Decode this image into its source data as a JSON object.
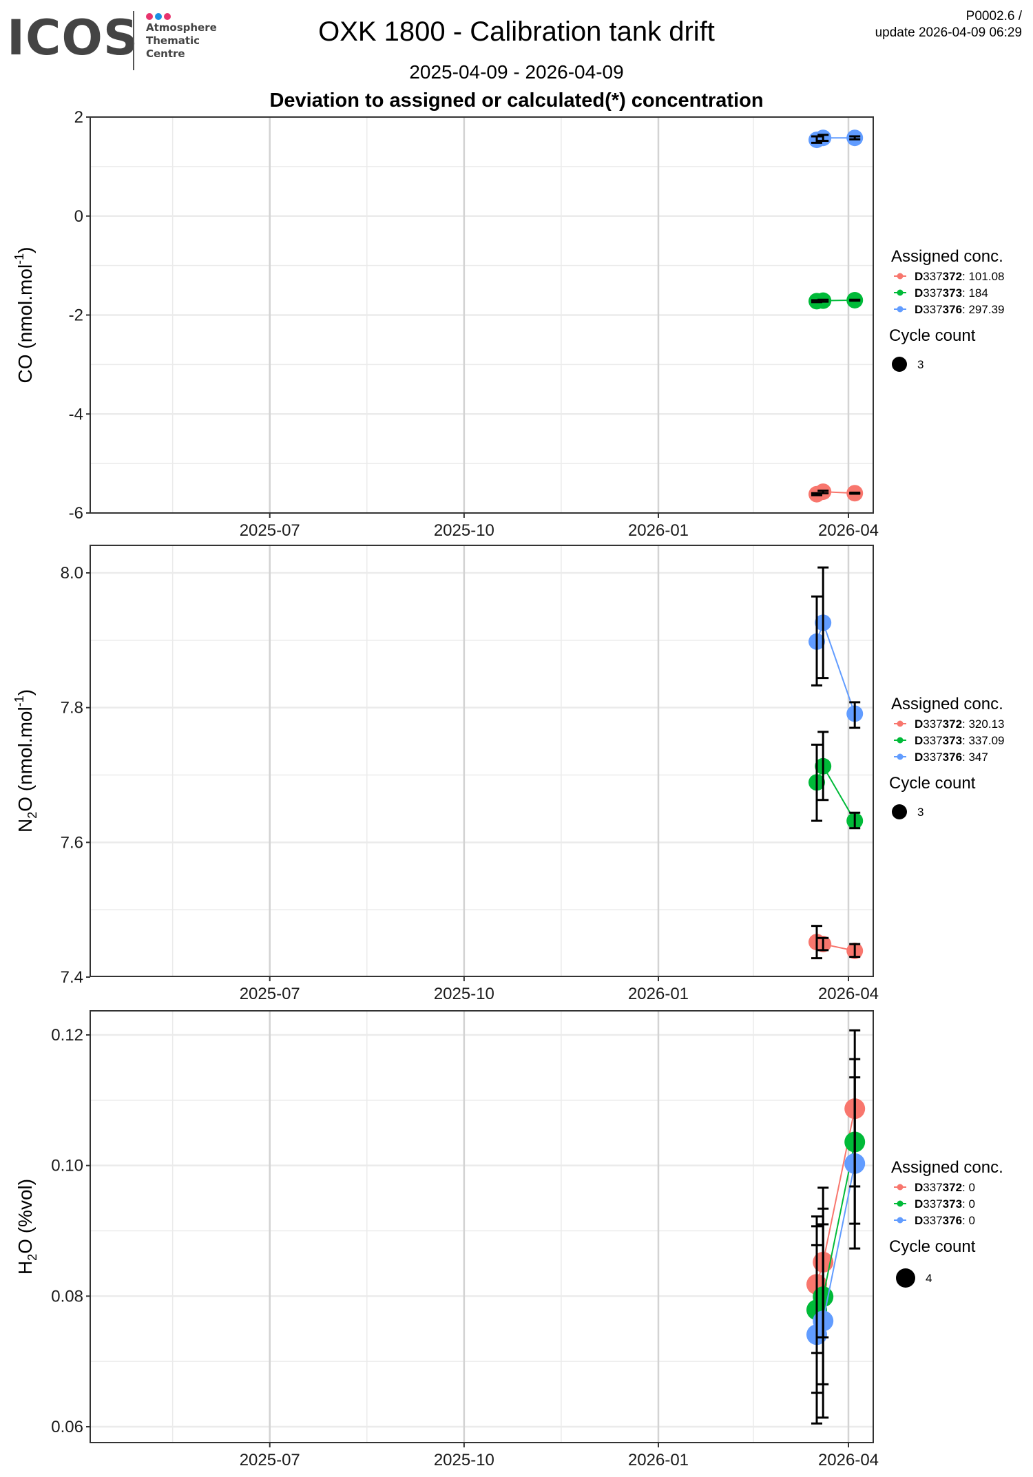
{
  "header": {
    "logo": {
      "word": "ICOS",
      "line1": "Atmosphere",
      "line2": "Thematic",
      "line3": "Centre",
      "dot_colors": [
        "#e8336d",
        "#1a8fe3",
        "#e8336d"
      ]
    },
    "title": "OXK 1800 - Calibration tank drift",
    "date_range": "2025-04-09 - 2026-04-09",
    "subtitle": "Deviation to assigned or calculated(*) concentration",
    "version": "P0002.6 /",
    "update": "update  2026-04-09 06:29"
  },
  "series_colors": {
    "D337372": "#F8766D",
    "D337373": "#00BA38",
    "D337376": "#619CFF"
  },
  "chart_data": [
    {
      "type": "line",
      "panel": "CO",
      "ylabel_main": "CO (nmol.mol",
      "ylabel_sup": "-1",
      "ylabel_end": ")",
      "xlim": [
        "2025-04-09",
        "2026-04-09"
      ],
      "ylim": [
        -6,
        2
      ],
      "yticks": [
        2,
        0,
        -2,
        -4,
        -6
      ],
      "ytick_labels": [
        "2",
        "0",
        "-2",
        "-4",
        "-6"
      ],
      "xticks": [
        "2025-07-01",
        "2025-10-01",
        "2026-01-01",
        "2026-04-01"
      ],
      "xtick_labels": [
        "2025-07",
        "2025-10",
        "2026-01",
        "2026-04"
      ],
      "grid": true,
      "legend": {
        "position": "right",
        "title": "Assigned conc.",
        "entries": [
          {
            "id": "D337372",
            "bold_prefix": "D",
            "plain_mid": "337",
            "bold_suffix": "372",
            "value": ": 101.08"
          },
          {
            "id": "D337373",
            "bold_prefix": "D",
            "plain_mid": "337",
            "bold_suffix": "373",
            "value": ": 184"
          },
          {
            "id": "D337376",
            "bold_prefix": "D",
            "plain_mid": "337",
            "bold_suffix": "376",
            "value": ": 297.39"
          }
        ],
        "size_title": "Cycle count",
        "size_label": "3"
      },
      "x": [
        "2026-03-17",
        "2026-03-20",
        "2026-04-04"
      ],
      "series": [
        {
          "name": "D337372",
          "values": [
            -5.62,
            -5.57,
            -5.6
          ],
          "err_low": [
            -5.64,
            -5.6,
            -5.61
          ],
          "err_high": [
            -5.6,
            -5.55,
            -5.59
          ]
        },
        {
          "name": "D337373",
          "values": [
            -1.72,
            -1.71,
            -1.7
          ],
          "err_low": [
            -1.74,
            -1.73,
            -1.71
          ],
          "err_high": [
            -1.7,
            -1.69,
            -1.69
          ]
        },
        {
          "name": "D337376",
          "values": [
            1.54,
            1.58,
            1.58
          ],
          "err_low": [
            1.48,
            1.52,
            1.55
          ],
          "err_high": [
            1.61,
            1.64,
            1.61
          ]
        }
      ]
    },
    {
      "type": "line",
      "panel": "N2O",
      "ylabel_pre": "N",
      "ylabel_sub": "2",
      "ylabel_main": "O (nmol.mol",
      "ylabel_sup": "-1",
      "ylabel_end": ")",
      "xlim": [
        "2025-04-09",
        "2026-04-09"
      ],
      "ylim": [
        7.4,
        8.04
      ],
      "yticks": [
        8.0,
        7.8,
        7.6,
        7.4
      ],
      "ytick_labels": [
        "8.0",
        "7.8",
        "7.6",
        "7.4"
      ],
      "xticks": [
        "2025-07-01",
        "2025-10-01",
        "2026-01-01",
        "2026-04-01"
      ],
      "xtick_labels": [
        "2025-07",
        "2025-10",
        "2026-01",
        "2026-04"
      ],
      "grid": true,
      "legend": {
        "position": "right",
        "title": "Assigned conc.",
        "entries": [
          {
            "id": "D337372",
            "bold_prefix": "D",
            "plain_mid": "337",
            "bold_suffix": "372",
            "value": ": 320.13"
          },
          {
            "id": "D337373",
            "bold_prefix": "D",
            "plain_mid": "337",
            "bold_suffix": "373",
            "value": ": 337.09"
          },
          {
            "id": "D337376",
            "bold_prefix": "D",
            "plain_mid": "337",
            "bold_suffix": "376",
            "value": ": 347"
          }
        ],
        "size_title": "Cycle count",
        "size_label": "3"
      },
      "x": [
        "2026-03-17",
        "2026-03-20",
        "2026-04-04"
      ],
      "series": [
        {
          "name": "D337372",
          "values": [
            7.452,
            7.449,
            7.439
          ],
          "err_low": [
            7.428,
            7.44,
            7.43
          ],
          "err_high": [
            7.476,
            7.458,
            7.449
          ]
        },
        {
          "name": "D337373",
          "values": [
            7.689,
            7.713,
            7.632
          ],
          "err_low": [
            7.632,
            7.663,
            7.621
          ],
          "err_high": [
            7.745,
            7.764,
            7.644
          ]
        },
        {
          "name": "D337376",
          "values": [
            7.898,
            7.926,
            7.791
          ],
          "err_low": [
            7.833,
            7.844,
            7.77
          ],
          "err_high": [
            7.965,
            8.008,
            7.808
          ]
        }
      ]
    },
    {
      "type": "line",
      "panel": "H2O",
      "ylabel_pre": "H",
      "ylabel_sub": "2",
      "ylabel_main": "O (%vol)",
      "xlim": [
        "2025-04-09",
        "2026-04-09"
      ],
      "ylim": [
        0.0575,
        0.1235
      ],
      "yticks": [
        0.12,
        0.1,
        0.08,
        0.06
      ],
      "ytick_labels": [
        "0.12",
        "0.10",
        "0.08",
        "0.06"
      ],
      "xticks": [
        "2025-07-01",
        "2025-10-01",
        "2026-01-01",
        "2026-04-01"
      ],
      "xtick_labels": [
        "2025-07",
        "2025-10",
        "2026-01",
        "2026-04"
      ],
      "grid": true,
      "legend": {
        "position": "right",
        "title": "Assigned conc.",
        "entries": [
          {
            "id": "D337372",
            "bold_prefix": "D",
            "plain_mid": "337",
            "bold_suffix": "372",
            "value": ": 0"
          },
          {
            "id": "D337373",
            "bold_prefix": "D",
            "plain_mid": "337",
            "bold_suffix": "373",
            "value": ": 0"
          },
          {
            "id": "D337376",
            "bold_prefix": "D",
            "plain_mid": "337",
            "bold_suffix": "376",
            "value": ": 0"
          }
        ],
        "size_title": "Cycle count",
        "size_label": "4"
      },
      "x": [
        "2026-03-17",
        "2026-03-20",
        "2026-04-04"
      ],
      "series": [
        {
          "name": "D337372",
          "values": [
            0.0818,
            0.0852,
            0.1087
          ],
          "err_low": [
            0.0713,
            0.0737,
            0.0968
          ],
          "err_high": [
            0.0922,
            0.0966,
            0.1207
          ]
        },
        {
          "name": "D337373",
          "values": [
            0.0779,
            0.0799,
            0.1036
          ],
          "err_low": [
            0.0652,
            0.0665,
            0.0911
          ],
          "err_high": [
            0.0907,
            0.0934,
            0.1163
          ]
        },
        {
          "name": "D337376",
          "values": [
            0.0741,
            0.0762,
            0.1003
          ],
          "err_low": [
            0.0605,
            0.0614,
            0.0873
          ],
          "err_high": [
            0.0878,
            0.091,
            0.1135
          ]
        }
      ]
    }
  ]
}
